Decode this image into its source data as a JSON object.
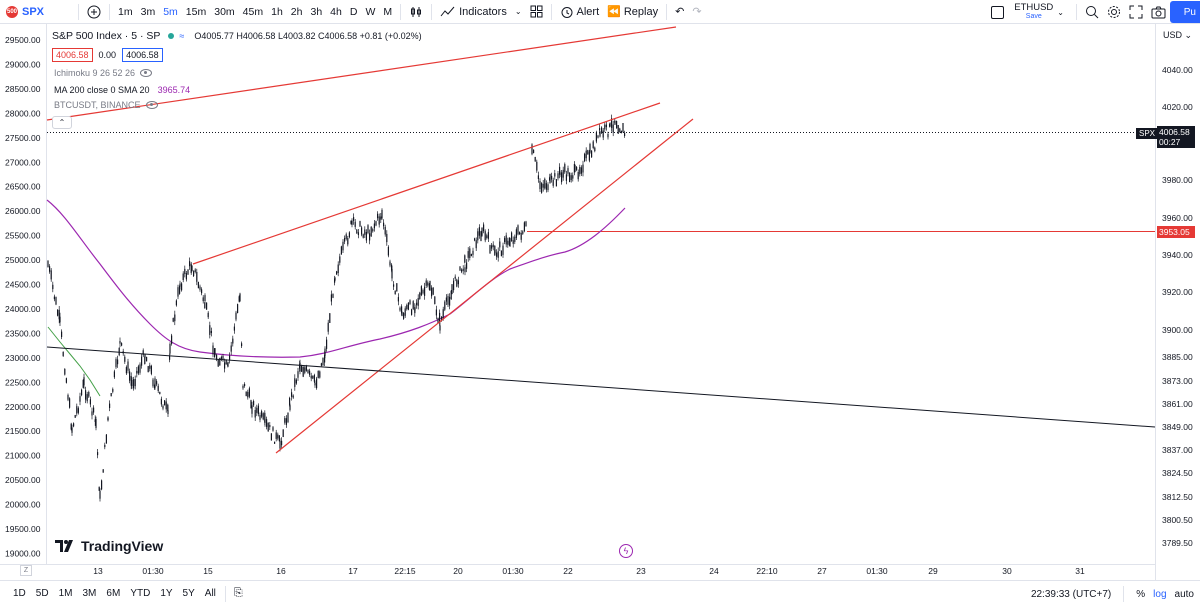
{
  "toolbar": {
    "symbol": "SPX",
    "symbol_badge": "500",
    "timeframes": [
      "1m",
      "3m",
      "5m",
      "15m",
      "30m",
      "45m",
      "1h",
      "2h",
      "3h",
      "4h",
      "D",
      "W",
      "M"
    ],
    "active_timeframe": "5m",
    "indicators_label": "Indicators",
    "alert_label": "Alert",
    "replay_label": "Replay",
    "layout_name": "ETHUSD",
    "layout_save": "Save",
    "publish_label": "Pu"
  },
  "legend": {
    "title": "S&P 500 Index · 5 · SP",
    "ohlc": {
      "o_label": "O",
      "o": "4005.77",
      "h_label": "H",
      "h": "4006.58",
      "l_label": "L",
      "l": "4003.82",
      "c_label": "C",
      "c": "4006.58",
      "change": "+0.81 (+0.02%)"
    },
    "bid": "4006.58",
    "spread": "0.00",
    "ask": "4006.58",
    "ichimoku": "Ichimoku 9 26 52 26",
    "ma_label": "MA 200 close 0 SMA 20",
    "ma_value": "3965.74",
    "overlay": "BTCUSDT, BINANCE"
  },
  "left_axis": [
    "29500.00",
    "29000.00",
    "28500.00",
    "28000.00",
    "27500.00",
    "27000.00",
    "26500.00",
    "26000.00",
    "25500.00",
    "25000.00",
    "24500.00",
    "24000.00",
    "23500.00",
    "23000.00",
    "22500.00",
    "22000.00",
    "21500.00",
    "21000.00",
    "20500.00",
    "20000.00",
    "19500.00",
    "19000.00"
  ],
  "right_axis": {
    "currency": "USD",
    "ticks": [
      "4040.00",
      "4020.00",
      "3980.00",
      "3960.00",
      "3940.00",
      "3920.00",
      "3900.00",
      "3885.00",
      "3873.00",
      "3861.00",
      "3849.00",
      "3837.00",
      "3824.50",
      "3812.50",
      "3800.50",
      "3789.50"
    ],
    "current_symbol": "SPX",
    "current_price": "4006.58",
    "countdown": "00:27",
    "hline_price": "3953.05"
  },
  "time_axis": [
    "13",
    "01:30",
    "15",
    "16",
    "17",
    "22:15",
    "20",
    "01:30",
    "22",
    "23",
    "24",
    "22:10",
    "27",
    "01:30",
    "29",
    "30",
    "31"
  ],
  "bottom_bar": {
    "ranges": [
      "1D",
      "5D",
      "1M",
      "3M",
      "6M",
      "YTD",
      "1Y",
      "5Y",
      "All"
    ],
    "clock": "22:39:33 (UTC+7)",
    "percent": "%",
    "log": "log",
    "auto": "auto",
    "z": "Z"
  },
  "branding": "TradingView",
  "colors": {
    "accent": "#2962ff",
    "trendline": "#e53935",
    "ma_line": "#9c27b0",
    "candle": "#131722",
    "ichimoku": "#43a047"
  }
}
